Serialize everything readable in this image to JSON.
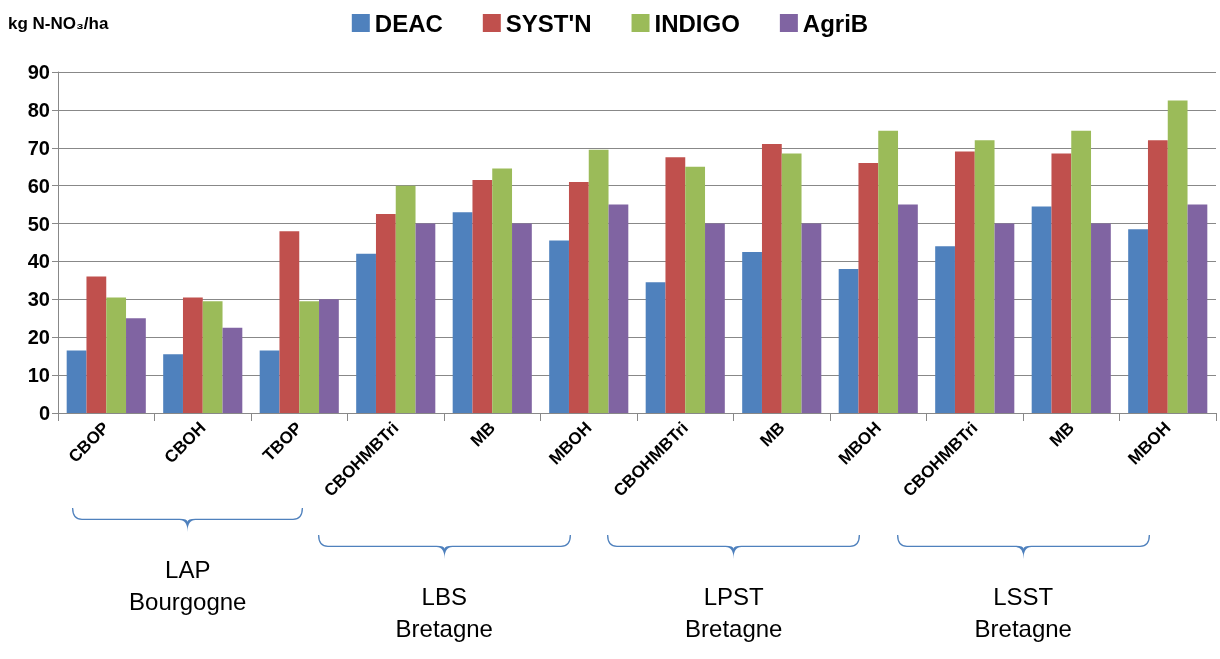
{
  "chart_data": {
    "type": "bar",
    "ylabel": "kg N-NO₃/ha",
    "categories": [
      "CBOP",
      "CBOH",
      "TBOP",
      "CBOHMBTri",
      "MB",
      "MBOH",
      "CBOHMBTri",
      "MB",
      "MBOH",
      "CBOHMBTri",
      "MB",
      "MBOH"
    ],
    "series": [
      {
        "name": "DEAC",
        "color": "#4f81bd",
        "values": [
          16.5,
          15.5,
          16.5,
          42,
          53,
          45.5,
          34.5,
          42.5,
          38,
          44,
          54.5,
          48.5
        ]
      },
      {
        "name": "SYST'N",
        "color": "#c0504d",
        "values": [
          36,
          30.5,
          48,
          52.5,
          61.5,
          61,
          67.5,
          71,
          66,
          69,
          68.5,
          72
        ]
      },
      {
        "name": "INDIGO",
        "color": "#9bbb59",
        "values": [
          30.5,
          29.5,
          29.5,
          60,
          64.5,
          69.5,
          65,
          68.5,
          74.5,
          72,
          74.5,
          82.5
        ]
      },
      {
        "name": "AgriB",
        "color": "#8064a2",
        "values": [
          25,
          22.5,
          30,
          50,
          50,
          55,
          50,
          50,
          55,
          50,
          50,
          55
        ]
      }
    ],
    "ylim": [
      0,
      90
    ],
    "yticks": [
      0,
      10,
      20,
      30,
      40,
      50,
      60,
      70,
      80,
      90
    ],
    "grid": "y",
    "legend": "top",
    "annotations": [
      "LAP\nBourgogne",
      "LBS\nBretagne",
      "LPST\nBretagne",
      "LSST\nBretagne"
    ]
  }
}
